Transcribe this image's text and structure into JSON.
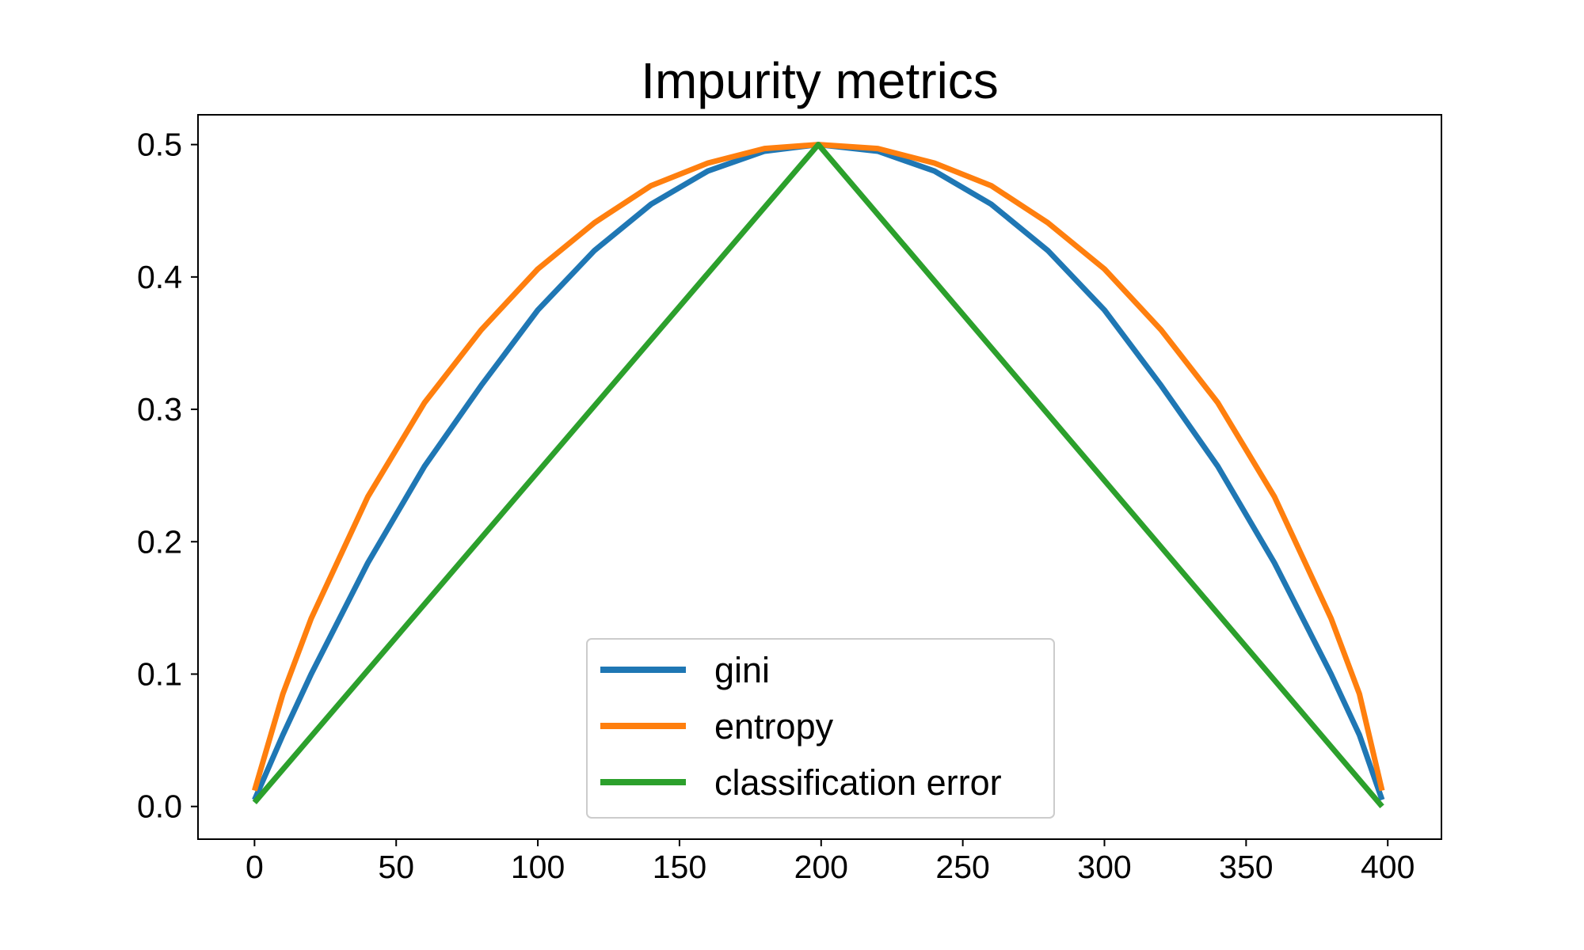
{
  "chart_data": {
    "type": "line",
    "title": "Impurity metrics",
    "xlabel": "",
    "ylabel": "",
    "xlim": [
      -19.95,
      418.95
    ],
    "ylim": [
      -0.0247,
      0.5225
    ],
    "xticks": [
      0,
      50,
      100,
      150,
      200,
      250,
      300,
      350,
      400
    ],
    "xtick_labels": [
      "0",
      "50",
      "100",
      "150",
      "200",
      "250",
      "300",
      "350",
      "400"
    ],
    "yticks": [
      0.0,
      0.1,
      0.2,
      0.3,
      0.4,
      0.5
    ],
    "ytick_labels": [
      "0.0",
      "0.1",
      "0.2",
      "0.3",
      "0.4",
      "0.5"
    ],
    "grid": false,
    "legend_position": "lower center",
    "n_points": 399,
    "x_range": [
      0,
      398
    ],
    "series": [
      {
        "name": "gini",
        "color": "#1f77b4",
        "x": [
          0,
          10,
          20,
          40,
          60,
          80,
          100,
          120,
          140,
          160,
          180,
          199,
          220,
          240,
          260,
          280,
          300,
          320,
          340,
          360,
          380,
          390,
          398
        ],
        "y": [
          0.005,
          0.054,
          0.1,
          0.184,
          0.257,
          0.318,
          0.375,
          0.42,
          0.455,
          0.48,
          0.495,
          0.5,
          0.495,
          0.48,
          0.455,
          0.42,
          0.375,
          0.318,
          0.257,
          0.184,
          0.1,
          0.054,
          0.005
        ]
      },
      {
        "name": "entropy",
        "color": "#ff7f0e",
        "x": [
          0,
          10,
          20,
          40,
          60,
          80,
          100,
          120,
          140,
          160,
          180,
          199,
          220,
          240,
          260,
          280,
          300,
          320,
          340,
          360,
          380,
          390,
          398
        ],
        "y": [
          0.012,
          0.085,
          0.142,
          0.234,
          0.305,
          0.36,
          0.406,
          0.441,
          0.469,
          0.486,
          0.497,
          0.5,
          0.497,
          0.486,
          0.469,
          0.441,
          0.406,
          0.36,
          0.305,
          0.234,
          0.142,
          0.085,
          0.012
        ]
      },
      {
        "name": "classification error",
        "color": "#2ca02c",
        "x": [
          0,
          199,
          398
        ],
        "y": [
          0.003,
          0.5,
          0.0
        ]
      }
    ]
  }
}
